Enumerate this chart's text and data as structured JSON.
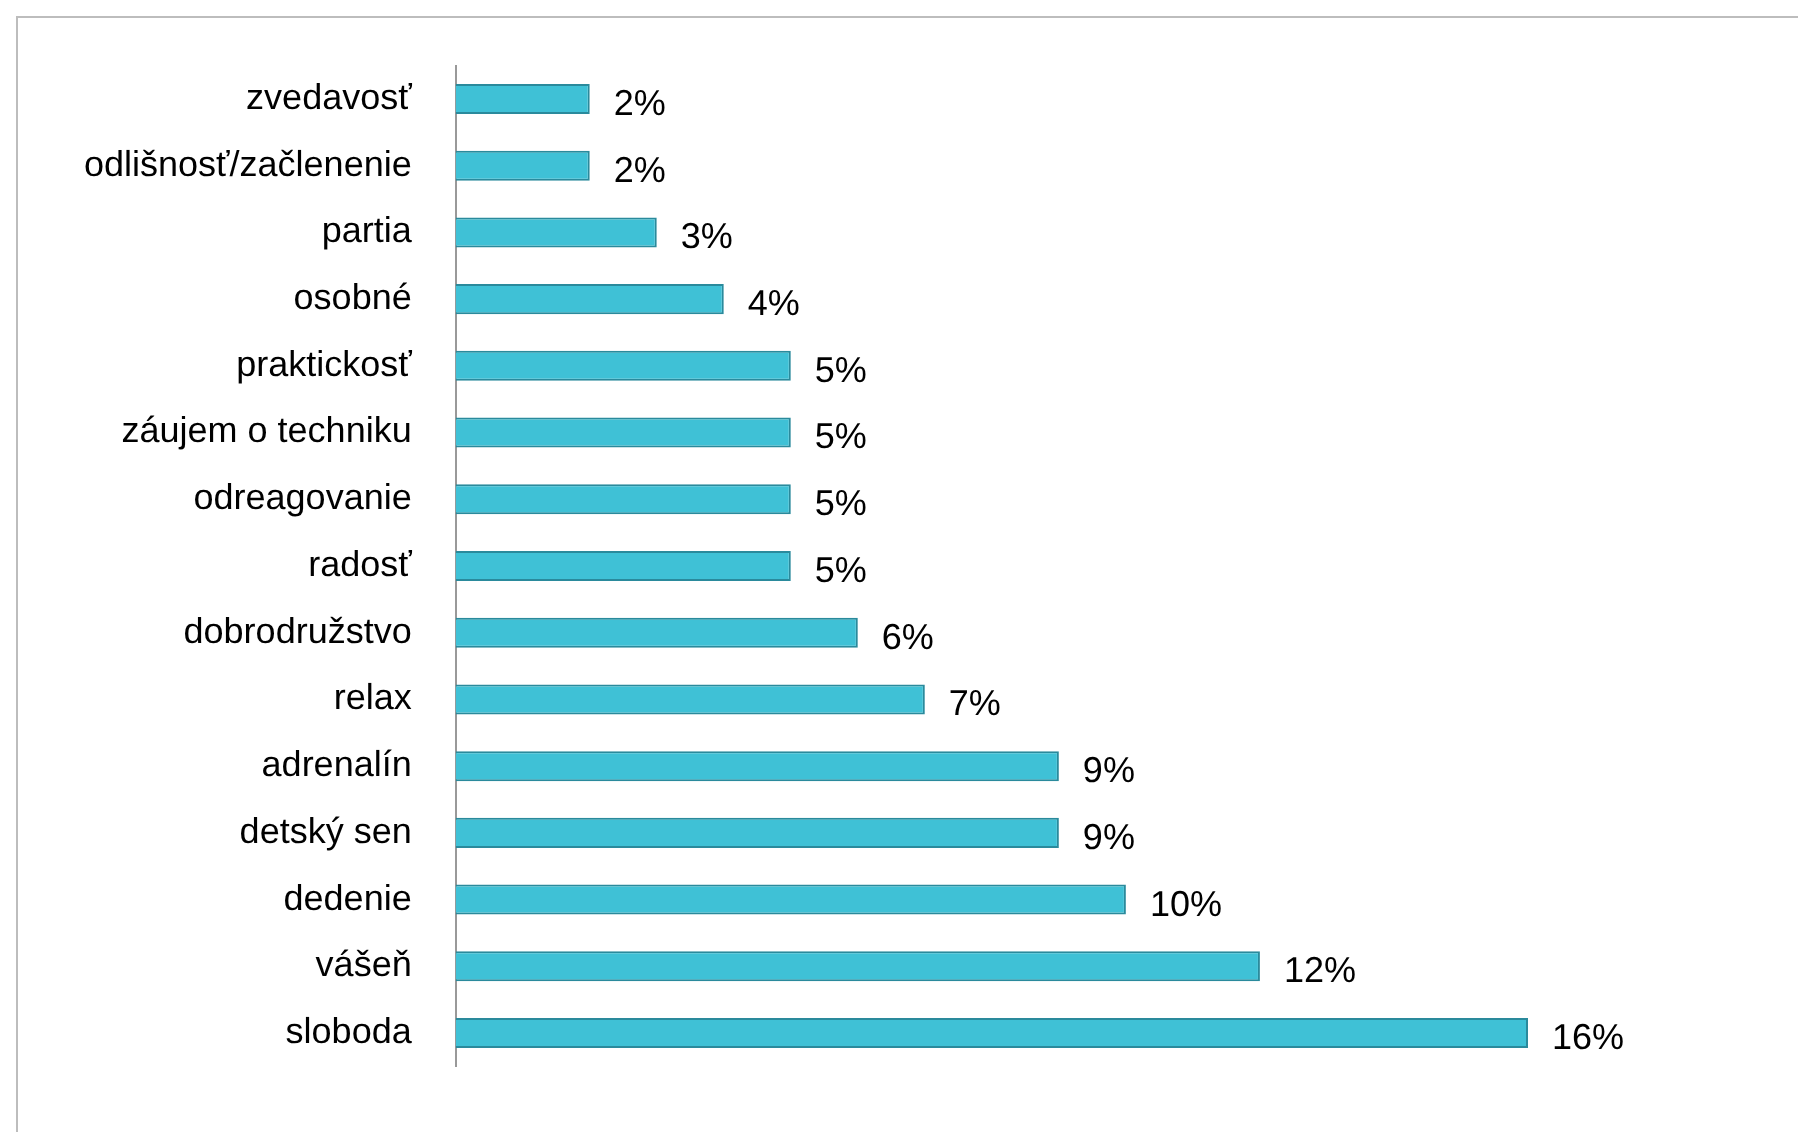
{
  "chart_data": {
    "type": "bar",
    "orientation": "horizontal",
    "categories": [
      "zvedavosť",
      "odlišnosť/začlenenie",
      "partia",
      "osobné",
      "praktickosť",
      "záujem o techniku",
      "odreagovanie",
      "radosť",
      "dobrodružstvo",
      "relax",
      "adrenalín",
      "detský sen",
      "dedenie",
      "vášeň",
      "sloboda"
    ],
    "values": [
      2,
      2,
      3,
      4,
      5,
      5,
      5,
      5,
      6,
      7,
      9,
      9,
      10,
      12,
      16
    ],
    "value_labels": [
      "2%",
      "2%",
      "3%",
      "4%",
      "5%",
      "5%",
      "5%",
      "5%",
      "6%",
      "7%",
      "9%",
      "9%",
      "10%",
      "12%",
      "16%"
    ],
    "color": "#3fc1d6",
    "tick_labels": "y",
    "grid": false,
    "legend": false
  }
}
